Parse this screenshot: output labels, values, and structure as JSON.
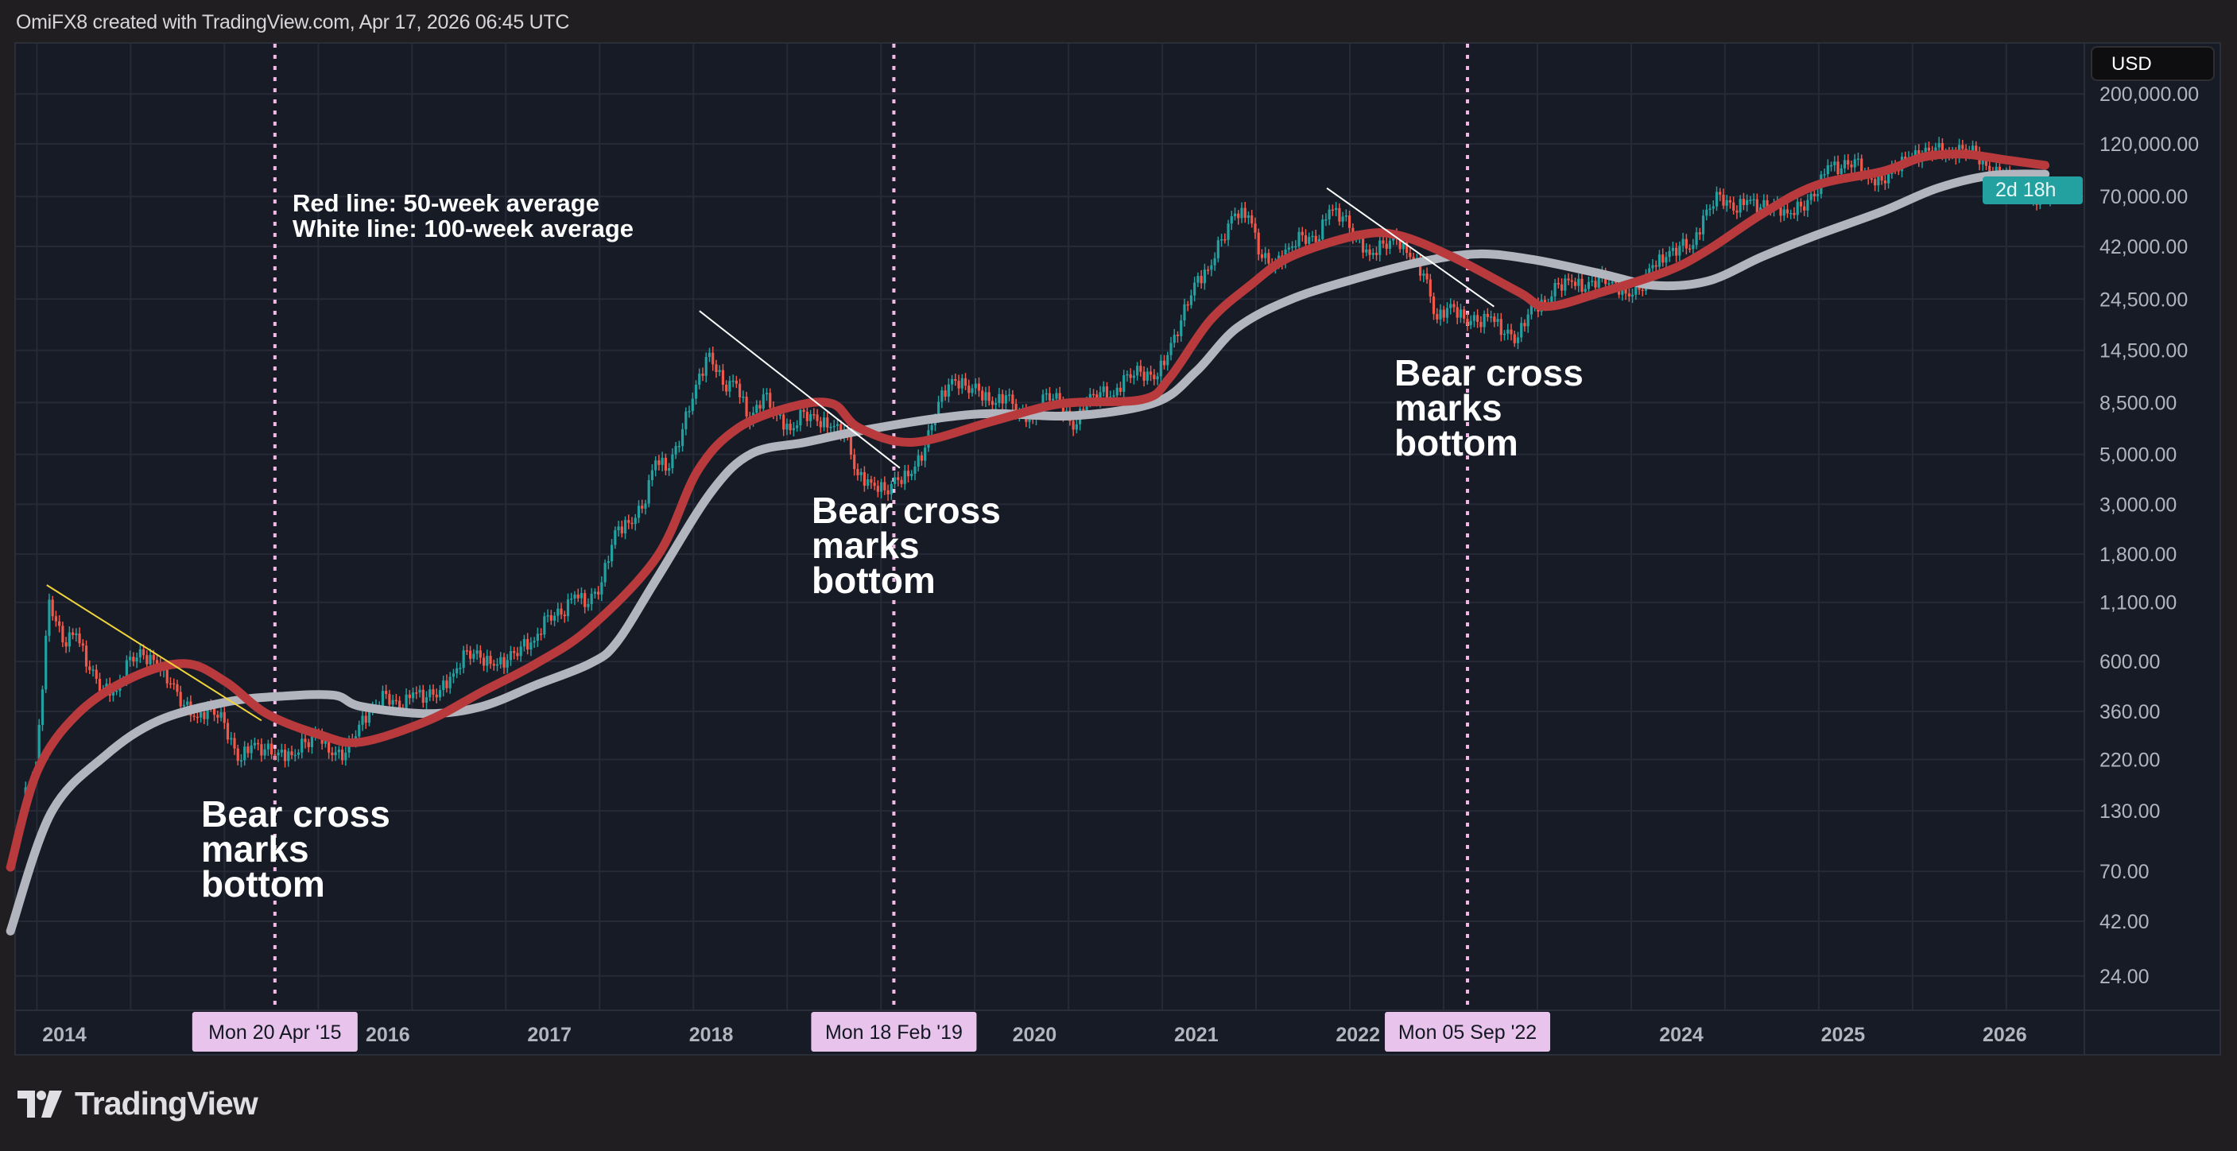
{
  "header": {
    "text": "OmiFX8 created with TradingView.com, Apr 17, 2026 06:45 UTC"
  },
  "price_axis": {
    "currency_button": "USD",
    "countdown": "2d 18h"
  },
  "logo": {
    "text": "TradingView"
  },
  "colors": {
    "up": "#22a1a0",
    "down": "#f2584a",
    "ma50": "#b83a3c",
    "ma100": "#b2b5be",
    "trend_yellow": "#f0d43c",
    "trend_white": "#ffffff",
    "marker": "#f2b8e6",
    "badge": "#e8c4ec"
  },
  "chart_data": {
    "type": "candlestick",
    "scale": "log",
    "grid": true,
    "ylim": [
      18,
      260000
    ],
    "xlim": [
      "2013-09",
      "2026-09"
    ],
    "y_ticks": [
      {
        "value": 200000,
        "label": "200,000.00"
      },
      {
        "value": 120000,
        "label": "120,000.00"
      },
      {
        "value": 70000,
        "label": "70,000.00"
      },
      {
        "value": 42000,
        "label": "42,000.00"
      },
      {
        "value": 24500,
        "label": "24,500.00"
      },
      {
        "value": 14500,
        "label": "14,500.00"
      },
      {
        "value": 8500,
        "label": "8,500.00"
      },
      {
        "value": 5000,
        "label": "5,000.00"
      },
      {
        "value": 3000,
        "label": "3,000.00"
      },
      {
        "value": 1800,
        "label": "1,800.00"
      },
      {
        "value": 1100,
        "label": "1,100.00"
      },
      {
        "value": 600,
        "label": "600.00"
      },
      {
        "value": 360,
        "label": "360.00"
      },
      {
        "value": 220,
        "label": "220.00"
      },
      {
        "value": 130,
        "label": "130.00"
      },
      {
        "value": 70,
        "label": "70.00"
      },
      {
        "value": 42,
        "label": "42.00"
      },
      {
        "value": 24,
        "label": "24.00"
      }
    ],
    "x_ticks": [
      "2014",
      "2016",
      "2017",
      "2018",
      "2020",
      "2021",
      "2022",
      "2024",
      "2025",
      "2026"
    ],
    "monthly_closes": [
      [
        "2013-10",
        204
      ],
      [
        "2013-11",
        1130
      ],
      [
        "2013-12",
        730
      ],
      [
        "2014-01",
        800
      ],
      [
        "2014-02",
        550
      ],
      [
        "2014-03",
        450
      ],
      [
        "2014-04",
        445
      ],
      [
        "2014-05",
        630
      ],
      [
        "2014-06",
        640
      ],
      [
        "2014-07",
        585
      ],
      [
        "2014-08",
        480
      ],
      [
        "2014-09",
        385
      ],
      [
        "2014-10",
        338
      ],
      [
        "2014-11",
        378
      ],
      [
        "2014-12",
        320
      ],
      [
        "2015-01",
        217
      ],
      [
        "2015-02",
        254
      ],
      [
        "2015-03",
        244
      ],
      [
        "2015-04",
        236
      ],
      [
        "2015-05",
        230
      ],
      [
        "2015-06",
        263
      ],
      [
        "2015-07",
        285
      ],
      [
        "2015-08",
        230
      ],
      [
        "2015-09",
        236
      ],
      [
        "2015-10",
        314
      ],
      [
        "2015-11",
        377
      ],
      [
        "2015-12",
        430
      ],
      [
        "2016-01",
        368
      ],
      [
        "2016-02",
        437
      ],
      [
        "2016-03",
        416
      ],
      [
        "2016-04",
        448
      ],
      [
        "2016-05",
        531
      ],
      [
        "2016-06",
        670
      ],
      [
        "2016-07",
        624
      ],
      [
        "2016-08",
        575
      ],
      [
        "2016-09",
        609
      ],
      [
        "2016-10",
        700
      ],
      [
        "2016-11",
        742
      ],
      [
        "2016-12",
        963
      ],
      [
        "2017-01",
        970
      ],
      [
        "2017-02",
        1190
      ],
      [
        "2017-03",
        1080
      ],
      [
        "2017-04",
        1350
      ],
      [
        "2017-05",
        2300
      ],
      [
        "2017-06",
        2480
      ],
      [
        "2017-07",
        2870
      ],
      [
        "2017-08",
        4700
      ],
      [
        "2017-09",
        4340
      ],
      [
        "2017-10",
        6470
      ],
      [
        "2017-11",
        10200
      ],
      [
        "2017-12",
        14150
      ],
      [
        "2018-01",
        10200
      ],
      [
        "2018-02",
        10300
      ],
      [
        "2018-03",
        6900
      ],
      [
        "2018-04",
        9240
      ],
      [
        "2018-05",
        7500
      ],
      [
        "2018-06",
        6400
      ],
      [
        "2018-07",
        7730
      ],
      [
        "2018-08",
        7030
      ],
      [
        "2018-09",
        6630
      ],
      [
        "2018-10",
        6370
      ],
      [
        "2018-11",
        4040
      ],
      [
        "2018-12",
        3740
      ],
      [
        "2019-01",
        3460
      ],
      [
        "2019-02",
        3850
      ],
      [
        "2019-03",
        4100
      ],
      [
        "2019-04",
        5350
      ],
      [
        "2019-05",
        8570
      ],
      [
        "2019-06",
        10800
      ],
      [
        "2019-07",
        10100
      ],
      [
        "2019-08",
        9600
      ],
      [
        "2019-09",
        8300
      ],
      [
        "2019-10",
        9150
      ],
      [
        "2019-11",
        7570
      ],
      [
        "2019-12",
        7190
      ],
      [
        "2020-01",
        9350
      ],
      [
        "2020-02",
        8600
      ],
      [
        "2020-03",
        6440
      ],
      [
        "2020-04",
        8650
      ],
      [
        "2020-05",
        9460
      ],
      [
        "2020-06",
        9140
      ],
      [
        "2020-07",
        11350
      ],
      [
        "2020-08",
        11650
      ],
      [
        "2020-09",
        10780
      ],
      [
        "2020-10",
        13800
      ],
      [
        "2020-11",
        19700
      ],
      [
        "2020-12",
        29000
      ],
      [
        "2021-01",
        33100
      ],
      [
        "2021-02",
        45200
      ],
      [
        "2021-03",
        58800
      ],
      [
        "2021-04",
        57700
      ],
      [
        "2021-05",
        37300
      ],
      [
        "2021-06",
        35000
      ],
      [
        "2021-07",
        41500
      ],
      [
        "2021-08",
        47100
      ],
      [
        "2021-09",
        43800
      ],
      [
        "2021-10",
        61300
      ],
      [
        "2021-11",
        57000
      ],
      [
        "2021-12",
        46300
      ],
      [
        "2022-01",
        38500
      ],
      [
        "2022-02",
        43200
      ],
      [
        "2022-03",
        45500
      ],
      [
        "2022-04",
        37700
      ],
      [
        "2022-05",
        31800
      ],
      [
        "2022-06",
        19900
      ],
      [
        "2022-07",
        23300
      ],
      [
        "2022-08",
        20050
      ],
      [
        "2022-09",
        19400
      ],
      [
        "2022-10",
        20500
      ],
      [
        "2022-11",
        17200
      ],
      [
        "2022-12",
        16550
      ],
      [
        "2023-01",
        23100
      ],
      [
        "2023-02",
        23150
      ],
      [
        "2023-03",
        28500
      ],
      [
        "2023-04",
        29250
      ],
      [
        "2023-05",
        27200
      ],
      [
        "2023-06",
        30500
      ],
      [
        "2023-07",
        29250
      ],
      [
        "2023-08",
        25950
      ],
      [
        "2023-09",
        26950
      ],
      [
        "2023-10",
        34650
      ],
      [
        "2023-11",
        37700
      ],
      [
        "2023-12",
        42300
      ],
      [
        "2024-01",
        42600
      ],
      [
        "2024-02",
        61200
      ],
      [
        "2024-03",
        71300
      ],
      [
        "2024-04",
        60600
      ],
      [
        "2024-05",
        67500
      ],
      [
        "2024-06",
        62700
      ],
      [
        "2024-07",
        64600
      ],
      [
        "2024-08",
        58950
      ],
      [
        "2024-09",
        63300
      ],
      [
        "2024-10",
        70200
      ],
      [
        "2024-11",
        96400
      ],
      [
        "2024-12",
        93400
      ],
      [
        "2025-01",
        102400
      ],
      [
        "2025-02",
        84300
      ],
      [
        "2025-03",
        82500
      ],
      [
        "2025-04",
        94200
      ],
      [
        "2025-05",
        104600
      ],
      [
        "2025-06",
        107100
      ],
      [
        "2025-07",
        115700
      ],
      [
        "2025-08",
        108200
      ],
      [
        "2025-09",
        114000
      ],
      [
        "2025-10",
        109500
      ],
      [
        "2025-11",
        90000
      ],
      [
        "2025-12",
        88000
      ],
      [
        "2026-01",
        80000
      ],
      [
        "2026-02",
        68000
      ],
      [
        "2026-03",
        70000
      ],
      [
        "2026-04",
        72000
      ]
    ],
    "series": [
      {
        "name": "Red line: 50-week average",
        "points": [
          [
            "2013-09",
            73
          ],
          [
            "2013-11",
            196
          ],
          [
            "2014-02",
            352
          ],
          [
            "2014-06",
            508
          ],
          [
            "2014-10",
            587
          ],
          [
            "2015-01",
            486
          ],
          [
            "2015-04",
            352
          ],
          [
            "2015-08",
            283
          ],
          [
            "2015-11",
            263
          ],
          [
            "2016-04",
            328
          ],
          [
            "2016-08",
            440
          ],
          [
            "2016-12",
            587
          ],
          [
            "2017-04",
            847
          ],
          [
            "2017-09",
            1760
          ],
          [
            "2017-12",
            4230
          ],
          [
            "2018-03",
            6550
          ],
          [
            "2018-07",
            8150
          ],
          [
            "2018-10",
            8400
          ],
          [
            "2018-12",
            6550
          ],
          [
            "2019-04",
            5660
          ],
          [
            "2019-10",
            7050
          ],
          [
            "2020-03",
            8400
          ],
          [
            "2020-09",
            8770
          ],
          [
            "2020-11",
            10900
          ],
          [
            "2021-02",
            19600
          ],
          [
            "2021-05",
            28200
          ],
          [
            "2021-08",
            37800
          ],
          [
            "2022-01",
            47100
          ],
          [
            "2022-04",
            47100
          ],
          [
            "2022-08",
            37800
          ],
          [
            "2023-01",
            26200
          ],
          [
            "2023-03",
            22700
          ],
          [
            "2023-07",
            26200
          ],
          [
            "2023-12",
            32700
          ],
          [
            "2024-03",
            40600
          ],
          [
            "2024-07",
            58600
          ],
          [
            "2024-11",
            78500
          ],
          [
            "2025-04",
            90800
          ],
          [
            "2025-07",
            105000
          ],
          [
            "2025-10",
            108000
          ],
          [
            "2026-01",
            102000
          ],
          [
            "2026-04",
            96400
          ]
        ]
      },
      {
        "name": "White line: 100-week average",
        "points": [
          [
            "2013-09",
            38
          ],
          [
            "2013-12",
            127
          ],
          [
            "2014-04",
            228
          ],
          [
            "2014-08",
            328
          ],
          [
            "2015-01",
            396
          ],
          [
            "2015-05",
            420
          ],
          [
            "2015-09",
            425
          ],
          [
            "2015-11",
            379
          ],
          [
            "2016-04",
            352
          ],
          [
            "2016-08",
            379
          ],
          [
            "2016-12",
            472
          ],
          [
            "2017-04",
            587
          ],
          [
            "2017-06",
            731
          ],
          [
            "2017-09",
            1413
          ],
          [
            "2018-01",
            3400
          ],
          [
            "2018-04",
            5040
          ],
          [
            "2018-08",
            5660
          ],
          [
            "2018-12",
            6350
          ],
          [
            "2019-06",
            7260
          ],
          [
            "2019-10",
            7590
          ],
          [
            "2020-04",
            7430
          ],
          [
            "2020-10",
            8520
          ],
          [
            "2021-01",
            11700
          ],
          [
            "2021-04",
            18200
          ],
          [
            "2021-08",
            24400
          ],
          [
            "2022-01",
            30400
          ],
          [
            "2022-06",
            36200
          ],
          [
            "2022-10",
            38900
          ],
          [
            "2023-02",
            36700
          ],
          [
            "2023-07",
            31800
          ],
          [
            "2023-11",
            28200
          ],
          [
            "2024-03",
            29500
          ],
          [
            "2024-07",
            37800
          ],
          [
            "2024-11",
            47100
          ],
          [
            "2025-04",
            60400
          ],
          [
            "2025-08",
            76200
          ],
          [
            "2025-12",
            86900
          ],
          [
            "2026-04",
            88000
          ]
        ]
      }
    ],
    "trendlines": [
      {
        "color": "yellow",
        "from": [
          "2013-11-22",
          1312
        ],
        "to": [
          "2015-03-20",
          328
        ]
      },
      {
        "color": "white",
        "from": [
          "2017-12-05",
          21700
        ],
        "to": [
          "2019-03-01",
          4350
        ]
      },
      {
        "color": "white",
        "from": [
          "2021-10-22",
          76300
        ],
        "to": [
          "2022-11-04",
          22700
        ]
      }
    ],
    "markers": [
      {
        "date": "2015-04-20",
        "label": "Mon 20 Apr '15",
        "annotation": [
          "Bear cross",
          "marks",
          "bottom"
        ]
      },
      {
        "date": "2019-02-18",
        "label": "Mon 18 Feb '19",
        "annotation": [
          "Bear cross",
          "marks",
          "bottom"
        ]
      },
      {
        "date": "2022-09-05",
        "label": "Mon 05 Sep '22",
        "annotation": [
          "Bear cross",
          "marks",
          "bottom"
        ]
      }
    ],
    "notes": [
      "Red line: 50-week average",
      "White line: 100-week average"
    ]
  }
}
